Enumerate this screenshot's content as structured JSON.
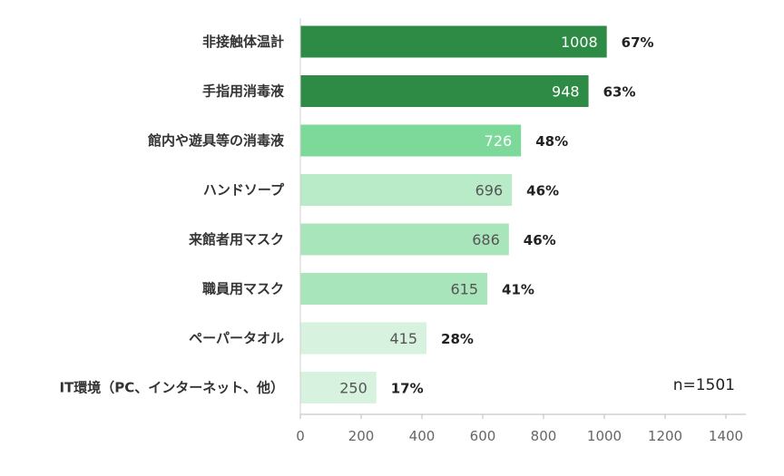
{
  "chart_data": {
    "type": "bar",
    "orientation": "horizontal",
    "categories": [
      "非接触体温計",
      "手指用消毒液",
      "館内や遊具等の消毒液",
      "ハンドソープ",
      "来館者用マスク",
      "職員用マスク",
      "ペーパータオル",
      "IT環境（PC、インターネット、他）"
    ],
    "values": [
      1008,
      948,
      726,
      696,
      686,
      615,
      415,
      250
    ],
    "value_labels": [
      "1008",
      "948",
      "726",
      "696",
      "686",
      "615",
      "415",
      "250"
    ],
    "percent_labels": [
      "67%",
      "63%",
      "48%",
      "46%",
      "46%",
      "41%",
      "28%",
      "17%"
    ],
    "bar_colors": [
      "#2e8b45",
      "#2e8b45",
      "#7dd99a",
      "#b9ebc8",
      "#a9e5bb",
      "#a9e5bb",
      "#d7f2df",
      "#d7f2df"
    ],
    "value_label_colors": [
      "#ffffff",
      "#ffffff",
      "#ffffff",
      "#555555",
      "#555555",
      "#555555",
      "#555555",
      "#555555"
    ],
    "xlim": [
      0,
      1400
    ],
    "xticks": [
      0,
      200,
      400,
      600,
      800,
      1000,
      1200,
      1400
    ],
    "grid": false,
    "annotation": "n=1501",
    "title": "",
    "xlabel": "",
    "ylabel": ""
  }
}
